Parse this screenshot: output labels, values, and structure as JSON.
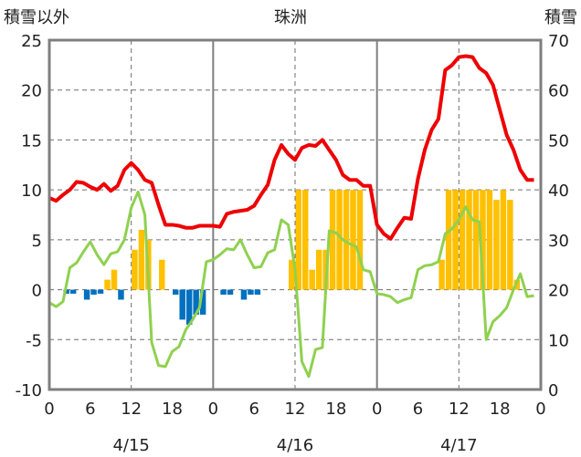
{
  "chart_data": {
    "type": "bar+line",
    "title": "珠洲",
    "left_axis_label": "積雪以外",
    "right_axis_label": "積雪",
    "left_ylim": [
      -10,
      25
    ],
    "left_yticks": [
      "-10",
      "-5",
      "0",
      "5",
      "10",
      "15",
      "20",
      "25"
    ],
    "right_ylim": [
      0,
      70
    ],
    "right_yticks": [
      "0",
      "10",
      "20",
      "30",
      "40",
      "50",
      "60",
      "70"
    ],
    "x_hour_range": [
      0,
      72
    ],
    "x_tick_hours": [
      0,
      6,
      12,
      18,
      24,
      30,
      36,
      42,
      48,
      54,
      60,
      66,
      72
    ],
    "x_tick_labels": [
      "0",
      "6",
      "12",
      "18",
      "0",
      "6",
      "12",
      "18",
      "0",
      "6",
      "12",
      "18",
      "0"
    ],
    "date_labels": [
      {
        "hour": 12,
        "text": "4/15"
      },
      {
        "hour": 36,
        "text": "4/16"
      },
      {
        "hour": 60,
        "text": "4/17"
      }
    ],
    "grid": "dashed at 12h and every 5 units; solid day separators",
    "series": [
      {
        "kind": "line",
        "color": "#ee0000",
        "axis": "left",
        "x": [
          0,
          1,
          2,
          3,
          4,
          5,
          6,
          7,
          8,
          9,
          10,
          11,
          12,
          13,
          14,
          15,
          16,
          17,
          18,
          19,
          20,
          21,
          22,
          23,
          24,
          25,
          26,
          27,
          28,
          29,
          30,
          31,
          32,
          33,
          34,
          35,
          36,
          37,
          38,
          39,
          40,
          41,
          42,
          43,
          44,
          45,
          46,
          47,
          48,
          49,
          50,
          51,
          52,
          53,
          54,
          55,
          56,
          57,
          58,
          59,
          60,
          61,
          62,
          63,
          64,
          65,
          66,
          67,
          68,
          69,
          70,
          71
        ],
        "values": [
          9.2,
          8.9,
          9.5,
          10,
          10.8,
          10.7,
          10.3,
          10,
          10.6,
          9.9,
          10.4,
          12,
          12.7,
          12,
          11,
          10.7,
          8.5,
          6.5,
          6.5,
          6.4,
          6.2,
          6.2,
          6.4,
          6.4,
          6.4,
          6.3,
          7.6,
          7.8,
          7.9,
          8,
          8.4,
          9.5,
          10.5,
          13,
          14.5,
          13.6,
          13,
          14.2,
          14.5,
          14.4,
          15,
          14,
          13,
          11.5,
          11,
          11,
          10.4,
          10.4,
          6.5,
          5.6,
          5.1,
          6.2,
          7.2,
          7.1,
          11.1,
          14,
          16,
          17.1,
          22,
          22.5,
          23.3,
          23.4,
          23.3,
          22.2,
          21.7,
          20.5,
          18,
          15.5,
          14,
          12,
          11,
          11
        ]
      },
      {
        "kind": "line",
        "color": "#8fd14f",
        "axis": "left",
        "x": [
          0,
          1,
          2,
          3,
          4,
          5,
          6,
          7,
          8,
          9,
          10,
          11,
          12,
          13,
          14,
          15,
          16,
          17,
          18,
          19,
          20,
          21,
          22,
          23,
          24,
          25,
          26,
          27,
          28,
          29,
          30,
          31,
          32,
          33,
          34,
          35,
          36,
          37,
          38,
          39,
          40,
          41,
          42,
          43,
          44,
          45,
          46,
          47,
          48,
          49,
          50,
          51,
          52,
          53,
          54,
          55,
          56,
          57,
          58,
          59,
          60,
          61,
          62,
          63,
          64,
          65,
          66,
          67,
          68,
          69,
          70,
          71
        ],
        "values": [
          -1.3,
          -1.7,
          -1.2,
          2.2,
          2.7,
          3.8,
          4.8,
          3.5,
          2.5,
          3.6,
          3.8,
          5,
          8.2,
          9.8,
          7.5,
          -5.3,
          -7.6,
          -7.7,
          -6.2,
          -5.7,
          -4,
          -3,
          -1.8,
          2.8,
          3,
          3.5,
          4.1,
          4,
          5,
          3.5,
          2.2,
          2.3,
          3.7,
          4,
          7,
          6.5,
          2,
          -7.2,
          -8.7,
          -6,
          -5.8,
          5.9,
          5.7,
          5,
          4.6,
          4.3,
          2,
          1.8,
          -0.4,
          -0.5,
          -0.7,
          -1.3,
          -1,
          -0.8,
          2,
          2.4,
          2.5,
          2.8,
          5.6,
          6.1,
          7,
          8.3,
          7,
          6.8,
          -5,
          -3.2,
          -2.6,
          -1.8,
          0,
          1.6,
          -0.7,
          -0.6
        ]
      },
      {
        "kind": "bar",
        "axis": "left",
        "color_positive": "#ffc000",
        "color_negative": "#0070c0",
        "x": [
          0,
          1,
          2,
          3,
          4,
          5,
          6,
          7,
          8,
          9,
          10,
          11,
          12,
          13,
          14,
          15,
          16,
          17,
          18,
          19,
          20,
          21,
          22,
          23,
          24,
          25,
          26,
          27,
          28,
          29,
          30,
          31,
          32,
          33,
          34,
          35,
          36,
          37,
          38,
          39,
          40,
          41,
          42,
          43,
          44,
          45,
          46,
          47,
          48,
          49,
          50,
          51,
          52,
          53,
          54,
          55,
          56,
          57,
          58,
          59,
          60,
          61,
          62,
          63,
          64,
          65,
          66,
          67,
          68,
          69,
          70,
          71
        ],
        "values": [
          0,
          0,
          -0.4,
          -0.4,
          0,
          -1,
          -0.5,
          -0.4,
          1,
          2,
          -1,
          0,
          4,
          6,
          5,
          0,
          3,
          0,
          -0.5,
          -3,
          -3.5,
          -2.5,
          -2.5,
          0,
          0,
          -0.5,
          -0.5,
          0,
          -1,
          -0.5,
          -0.5,
          0,
          0,
          0,
          0,
          3,
          10,
          10,
          2,
          4,
          4,
          10,
          10,
          10,
          10,
          10,
          0,
          0,
          0,
          0,
          0,
          0,
          0,
          0,
          0,
          0,
          0,
          3,
          10,
          10,
          10,
          10,
          10,
          10,
          10,
          9,
          10,
          9,
          1,
          0,
          0,
          0
        ]
      },
      {
        "kind": "line",
        "color": "#7030a0",
        "axis": "right",
        "x": [
          0,
          72
        ],
        "values": [
          0,
          0
        ]
      }
    ]
  }
}
